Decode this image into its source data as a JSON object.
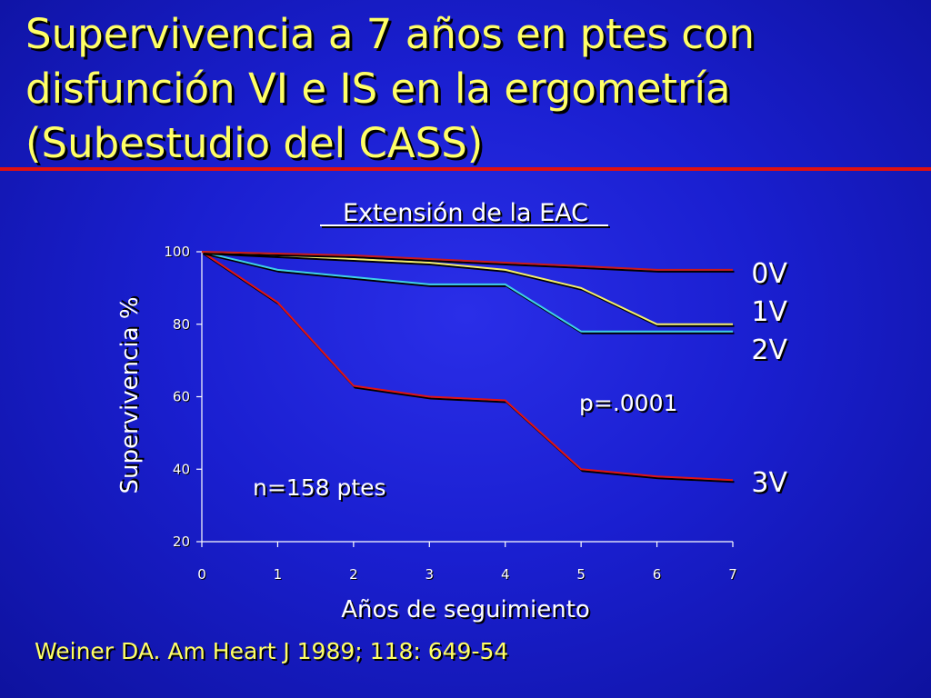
{
  "slide": {
    "title_lines": [
      "Supervivencia a 7 años en ptes con",
      "disfunción VI e IS en la ergometría",
      "(Subestudio del CASS)"
    ],
    "citation": "Weiner DA. Am Heart J 1989; 118: 649-54"
  },
  "colors": {
    "title": "#ffff66",
    "rule": "#e01010",
    "background": "#1a1fd0"
  },
  "chart_data": {
    "type": "line",
    "title": "Extensión de la EAC",
    "xlabel": "Años de seguimiento",
    "ylabel": "Supervivencia %",
    "x": [
      0,
      1,
      2,
      3,
      4,
      5,
      6,
      7
    ],
    "xlim": [
      0,
      7
    ],
    "ylim": [
      20,
      100
    ],
    "x_ticks": [
      "0",
      "1",
      "2",
      "3",
      "4",
      "5",
      "6",
      "7"
    ],
    "y_ticks": [
      "20",
      "40",
      "60",
      "80",
      "100"
    ],
    "grid": false,
    "series": [
      {
        "name": "0V",
        "color": "#cc1a1a",
        "values": [
          100,
          99.5,
          99,
          98,
          97,
          96,
          95,
          95
        ]
      },
      {
        "name": "1V",
        "color": "#f5f06a",
        "values": [
          100,
          99,
          98,
          97,
          95,
          90,
          80,
          80
        ]
      },
      {
        "name": "2V",
        "color": "#3fd0e6",
        "values": [
          100,
          95,
          93,
          91,
          91,
          78,
          78,
          78
        ]
      },
      {
        "name": "3V",
        "color": "#e01414",
        "values": [
          100,
          86,
          63,
          60,
          59,
          40,
          38,
          37
        ]
      }
    ],
    "annotations": [
      {
        "text": "p=.0001"
      },
      {
        "text": "n=158 ptes"
      }
    ]
  }
}
